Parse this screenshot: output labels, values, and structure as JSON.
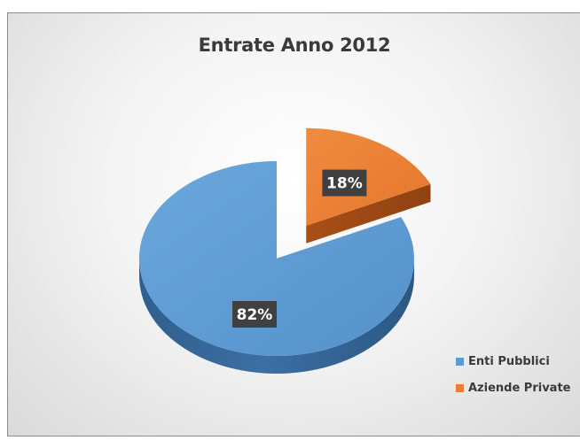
{
  "chart_data": {
    "type": "pie",
    "title": "Entrate Anno 2012",
    "categories": [
      "Enti Pubblici",
      "Aziende Private"
    ],
    "values": [
      82,
      18
    ],
    "labels": [
      "82%",
      "18%"
    ],
    "colors": [
      "#5b9bd5",
      "#ed7d31"
    ],
    "exploded": [
      false,
      true
    ],
    "style": "3d",
    "legend": "bottom-right"
  }
}
